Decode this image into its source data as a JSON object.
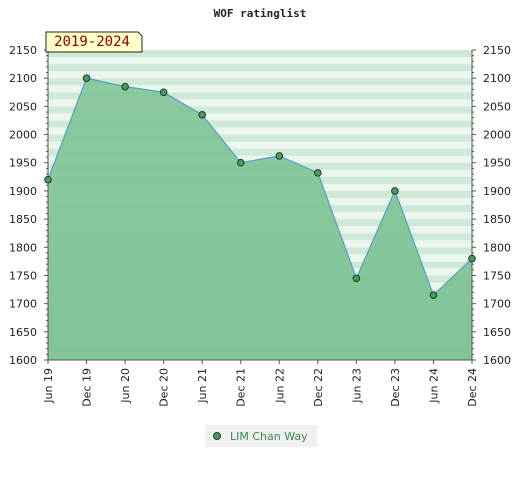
{
  "chart_data": {
    "type": "area",
    "title": "WOF ratinglist",
    "period_label": "2019-2024",
    "x": [
      "Jun 19",
      "Dec 19",
      "Jun 20",
      "Dec 20",
      "Jun 21",
      "Dec 21",
      "Jun 22",
      "Dec 22",
      "Jun 23",
      "Dec 23",
      "Jun 24",
      "Dec 24"
    ],
    "series": [
      {
        "name": "LIM Chan Way",
        "values": [
          1920,
          2100,
          2085,
          2075,
          2035,
          1950,
          1962,
          1932,
          1745,
          1900,
          1715,
          1780
        ]
      }
    ],
    "ylim": [
      1600,
      2150
    ],
    "yticks": [
      1600,
      1650,
      1700,
      1750,
      1800,
      1850,
      1900,
      1950,
      2000,
      2050,
      2100,
      2150
    ],
    "y_axis_both_sides": true,
    "legend_position": "bottom-center",
    "grid": "horizontal bands",
    "colors": {
      "area_fill": "#7cc293",
      "line": "#5aa0c8",
      "marker_fill": "#4a9a60",
      "marker_stroke": "#1e3d25",
      "band_light": "#eaf6ee",
      "band_mid": "#cfe9d7",
      "period_bg": "#ffffc8",
      "legend_text": "#3a8a50",
      "legend_bg": "#f0f0f0"
    }
  }
}
